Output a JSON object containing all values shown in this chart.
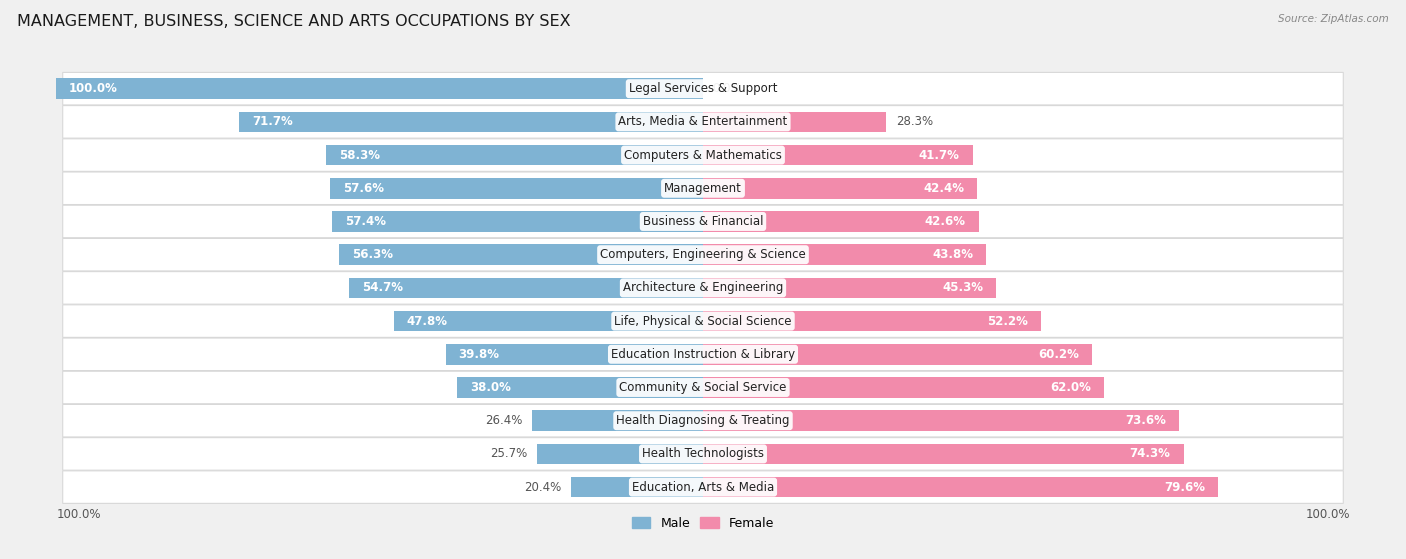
{
  "title": "MANAGEMENT, BUSINESS, SCIENCE AND ARTS OCCUPATIONS BY SEX",
  "source": "Source: ZipAtlas.com",
  "categories": [
    "Legal Services & Support",
    "Arts, Media & Entertainment",
    "Computers & Mathematics",
    "Management",
    "Business & Financial",
    "Computers, Engineering & Science",
    "Architecture & Engineering",
    "Life, Physical & Social Science",
    "Education Instruction & Library",
    "Community & Social Service",
    "Health Diagnosing & Treating",
    "Health Technologists",
    "Education, Arts & Media"
  ],
  "male_pct": [
    100.0,
    71.7,
    58.3,
    57.6,
    57.4,
    56.3,
    54.7,
    47.8,
    39.8,
    38.0,
    26.4,
    25.7,
    20.4
  ],
  "female_pct": [
    0.0,
    28.3,
    41.7,
    42.4,
    42.6,
    43.8,
    45.3,
    52.2,
    60.2,
    62.0,
    73.6,
    74.3,
    79.6
  ],
  "male_color": "#7fb3d3",
  "female_color": "#f28bab",
  "bg_color": "#f0f0f0",
  "row_bg_even": "#ffffff",
  "row_bg_odd": "#f7f7f7",
  "title_fontsize": 11.5,
  "label_fontsize": 8.5,
  "cat_fontsize": 8.5,
  "bar_height": 0.62,
  "legend_male": "Male",
  "legend_female": "Female"
}
